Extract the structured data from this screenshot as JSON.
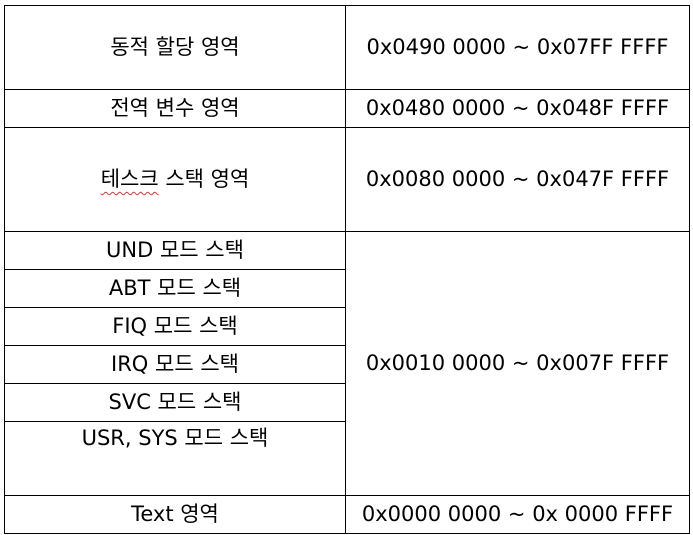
{
  "memory_map": {
    "dynamic_alloc": {
      "region": "동적 할당 영역",
      "range": "0x0490 0000 ~ 0x07FF FFFF"
    },
    "global_vars": {
      "region": "전역 변수 영역",
      "range": "0x0480 0000 ~ 0x048F FFFF"
    },
    "task_stack": {
      "region_underlined": "테스크",
      "region_rest": " 스택 영역",
      "range": "0x0080 0000 ~ 0x047F FFFF"
    },
    "mode_stacks": {
      "und": "UND 모드 스택",
      "abt": "ABT 모드 스택",
      "fiq": "FIQ 모드 스택",
      "irq": "IRQ 모드 스택",
      "svc": "SVC 모드 스택",
      "usr_sys": "USR, SYS 모드 스택",
      "range": "0x0010 0000 ~ 0x007F FFFF"
    },
    "text": {
      "region": "Text 영역",
      "range": "0x0000 0000 ~ 0x 0000 FFFF"
    }
  },
  "colors": {
    "border": "#000000",
    "spellcheck_underline": "#d43a3a"
  }
}
